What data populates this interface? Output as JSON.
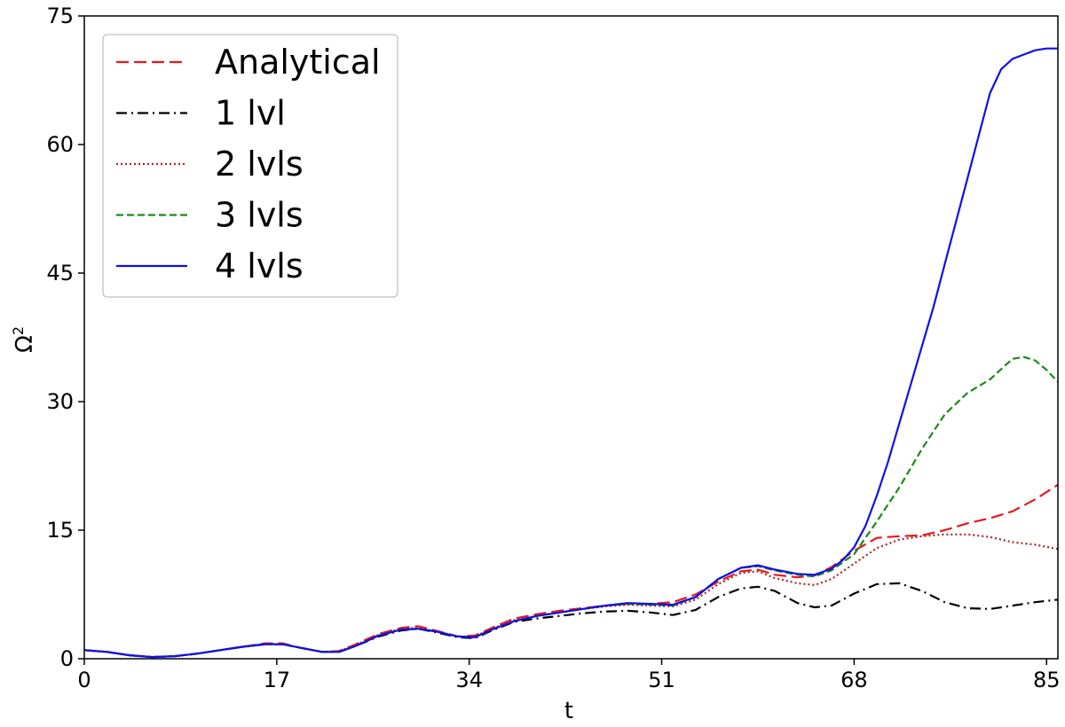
{
  "chart_data": {
    "type": "line",
    "title": "",
    "xlabel": "t",
    "ylabel": "Ω",
    "ylabel_superscript": "2",
    "xlim": [
      0,
      86
    ],
    "ylim": [
      0,
      75
    ],
    "xticks": [
      0,
      17,
      34,
      51,
      68,
      85
    ],
    "yticks": [
      0,
      15,
      30,
      45,
      60,
      75
    ],
    "grid": false,
    "legend_position": "top-left",
    "series": [
      {
        "name": "Analytical",
        "color": "#e8181e",
        "style": "dashed",
        "x": [
          0,
          2,
          4,
          6,
          8,
          10,
          12,
          14,
          16,
          17.5,
          19,
          21,
          22.5,
          24,
          26,
          28,
          29.5,
          31,
          33,
          34.5,
          36,
          38,
          40,
          42,
          44,
          46,
          48,
          50,
          52,
          54,
          56,
          58,
          59.5,
          61,
          63,
          64.5,
          66,
          68,
          70,
          72,
          74,
          76,
          78,
          80,
          82,
          84,
          86
        ],
        "y": [
          1.0,
          0.8,
          0.4,
          0.2,
          0.3,
          0.6,
          1.0,
          1.4,
          1.8,
          1.8,
          1.3,
          0.8,
          0.9,
          1.7,
          2.9,
          3.6,
          3.8,
          3.3,
          2.6,
          2.7,
          3.6,
          4.7,
          5.2,
          5.6,
          5.9,
          6.2,
          6.4,
          6.4,
          6.6,
          7.5,
          9.0,
          10.2,
          10.4,
          9.8,
          9.5,
          9.7,
          10.7,
          12.6,
          14.1,
          14.3,
          14.4,
          15.0,
          15.8,
          16.4,
          17.2,
          18.6,
          20.3
        ]
      },
      {
        "name": "1 lvl",
        "color": "#000000",
        "style": "dashdot",
        "x": [
          0,
          2,
          4,
          6,
          8,
          10,
          12,
          14,
          16,
          17.5,
          19,
          21,
          22.5,
          24,
          26,
          28,
          29.5,
          31,
          33,
          34.5,
          36,
          38,
          40,
          42,
          44,
          46,
          48,
          50,
          52,
          54,
          56,
          58,
          59.5,
          61,
          63,
          64.5,
          66,
          68,
          70,
          72,
          74,
          76,
          78,
          80,
          82,
          84,
          86
        ],
        "y": [
          1.0,
          0.8,
          0.4,
          0.2,
          0.3,
          0.6,
          1.0,
          1.4,
          1.7,
          1.7,
          1.3,
          0.8,
          0.8,
          1.5,
          2.6,
          3.3,
          3.5,
          3.1,
          2.5,
          2.4,
          3.3,
          4.3,
          4.7,
          5.0,
          5.3,
          5.5,
          5.6,
          5.4,
          5.1,
          5.7,
          7.2,
          8.2,
          8.4,
          7.9,
          6.5,
          6.0,
          6.2,
          7.6,
          8.7,
          8.8,
          7.9,
          6.6,
          5.9,
          5.8,
          6.2,
          6.6,
          6.9
        ]
      },
      {
        "name": "2 lvls",
        "color": "#b22222",
        "style": "dotted",
        "x": [
          0,
          2,
          4,
          6,
          8,
          10,
          12,
          14,
          16,
          17.5,
          19,
          21,
          22.5,
          24,
          26,
          28,
          29.5,
          31,
          33,
          34.5,
          36,
          38,
          40,
          42,
          44,
          46,
          48,
          50,
          52,
          54,
          56,
          58,
          59.5,
          61,
          63,
          64.5,
          66,
          68,
          70,
          72,
          74,
          76,
          78,
          80,
          82,
          84,
          86
        ],
        "y": [
          1.0,
          0.8,
          0.4,
          0.2,
          0.3,
          0.6,
          1.0,
          1.4,
          1.7,
          1.7,
          1.3,
          0.8,
          0.9,
          1.6,
          2.8,
          3.5,
          3.6,
          3.2,
          2.6,
          2.6,
          3.5,
          4.5,
          5.0,
          5.4,
          5.8,
          6.1,
          6.3,
          6.2,
          6.1,
          6.9,
          8.7,
          10.0,
          10.2,
          9.4,
          8.8,
          8.6,
          9.3,
          11.1,
          12.9,
          13.9,
          14.3,
          14.5,
          14.5,
          14.2,
          13.6,
          13.3,
          12.8
        ]
      },
      {
        "name": "3 lvls",
        "color": "#1a8a1a",
        "style": "dashed-short",
        "x": [
          0,
          2,
          4,
          6,
          8,
          10,
          12,
          14,
          16,
          17.5,
          19,
          21,
          22.5,
          24,
          26,
          28,
          29.5,
          31,
          33,
          34.5,
          36,
          38,
          40,
          42,
          44,
          46,
          48,
          50,
          52,
          54,
          56,
          58,
          59.5,
          61,
          63,
          64.5,
          66,
          68,
          70,
          72,
          74,
          76,
          78,
          80,
          81,
          82,
          83,
          84,
          85,
          86
        ],
        "y": [
          1.0,
          0.8,
          0.4,
          0.2,
          0.3,
          0.6,
          1.0,
          1.4,
          1.7,
          1.7,
          1.3,
          0.8,
          0.8,
          1.5,
          2.7,
          3.4,
          3.5,
          3.2,
          2.6,
          2.5,
          3.4,
          4.4,
          5.0,
          5.4,
          5.8,
          6.2,
          6.4,
          6.3,
          6.2,
          7.2,
          9.3,
          10.6,
          10.8,
          10.3,
          9.8,
          9.6,
          10.3,
          12.2,
          16.0,
          20.0,
          24.5,
          28.5,
          31.0,
          32.6,
          33.8,
          35.0,
          35.2,
          34.8,
          33.7,
          32.3
        ]
      },
      {
        "name": "4 lvls",
        "color": "#1010e8",
        "style": "solid",
        "x": [
          0,
          2,
          4,
          6,
          8,
          10,
          12,
          14,
          16,
          17.5,
          19,
          21,
          22.5,
          24,
          26,
          28,
          29.5,
          31,
          33,
          34.5,
          36,
          38,
          40,
          42,
          44,
          46,
          48,
          50,
          52,
          54,
          56,
          58,
          59.5,
          61,
          63,
          64.5,
          66,
          67,
          68,
          69,
          70,
          71,
          72,
          73,
          74,
          75,
          76,
          77,
          78,
          79,
          80,
          81,
          82,
          83,
          84,
          85,
          86
        ],
        "y": [
          1.0,
          0.8,
          0.4,
          0.2,
          0.3,
          0.6,
          1.0,
          1.4,
          1.7,
          1.7,
          1.3,
          0.8,
          0.8,
          1.5,
          2.7,
          3.4,
          3.5,
          3.2,
          2.6,
          2.5,
          3.4,
          4.4,
          5.0,
          5.4,
          5.8,
          6.2,
          6.5,
          6.4,
          6.3,
          7.2,
          9.3,
          10.6,
          10.9,
          10.4,
          9.9,
          9.8,
          10.5,
          11.5,
          13.0,
          15.5,
          19.0,
          23.0,
          27.5,
          32.0,
          36.5,
          41.0,
          46.0,
          51.0,
          56.0,
          61.0,
          66.0,
          68.8,
          70.0,
          70.5,
          71.0,
          71.2,
          71.2
        ]
      }
    ]
  }
}
